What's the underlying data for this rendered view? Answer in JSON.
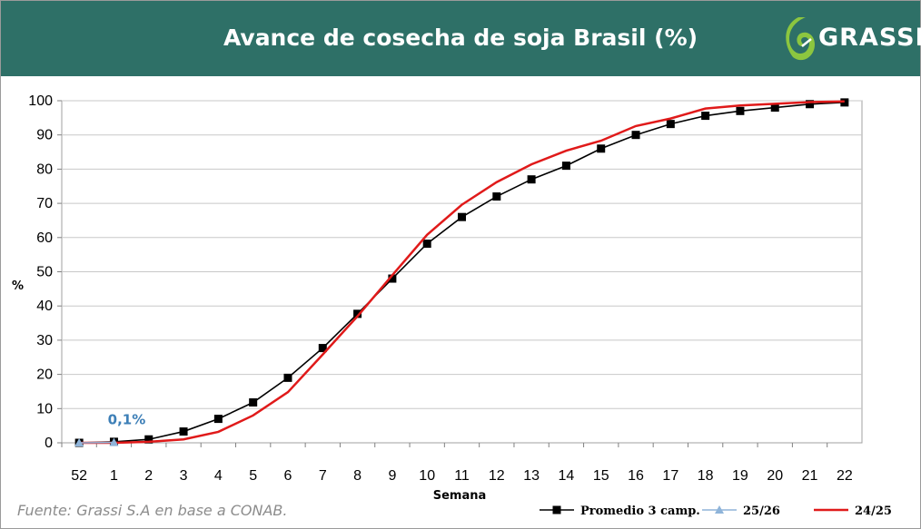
{
  "header": {
    "title": "Avance de cosecha de soja Brasil (%)",
    "logo_text": "GRASSI",
    "bg_color": "#2e7067"
  },
  "footer": {
    "source": "Fuente: Grassi S.A en base a CONAB."
  },
  "chart_data": {
    "type": "line",
    "xlabel": "Semana",
    "ylabel": "%",
    "categories": [
      "52",
      "1",
      "2",
      "3",
      "4",
      "5",
      "6",
      "7",
      "8",
      "9",
      "10",
      "11",
      "12",
      "13",
      "14",
      "15",
      "16",
      "17",
      "18",
      "19",
      "20",
      "21",
      "22"
    ],
    "ylim": [
      0,
      100
    ],
    "yticks": [
      0,
      10,
      20,
      30,
      40,
      50,
      60,
      70,
      80,
      90,
      100
    ],
    "grid": true,
    "legend_position": "bottom-right",
    "series": [
      {
        "name": "Promedio 3 camp.",
        "color": "#000000",
        "marker": "square",
        "values": [
          0,
          0.3,
          1,
          3.3,
          7,
          11.8,
          19,
          27.7,
          37.7,
          48,
          58.2,
          66,
          72,
          77,
          81,
          86,
          90,
          93.2,
          95.6,
          97,
          98,
          99,
          99.5
        ]
      },
      {
        "name": "25/26",
        "color": "#8fb4d9",
        "marker": "triangle",
        "values": [
          0,
          0.1,
          null,
          null,
          null,
          null,
          null,
          null,
          null,
          null,
          null,
          null,
          null,
          null,
          null,
          null,
          null,
          null,
          null,
          null,
          null,
          null,
          null
        ]
      },
      {
        "name": "24/25",
        "color": "#e01a1a",
        "marker": "none",
        "values": [
          0,
          0,
          0.3,
          1,
          3.2,
          8,
          14.8,
          25.8,
          37,
          49,
          60.8,
          69.6,
          76.2,
          81.4,
          85.4,
          88.3,
          92.6,
          94.8,
          97.7,
          98.6,
          99.1,
          99.6,
          99.8
        ]
      }
    ],
    "annotations": [
      {
        "text": "0,1%",
        "series": "25/26",
        "category": "1"
      }
    ]
  }
}
